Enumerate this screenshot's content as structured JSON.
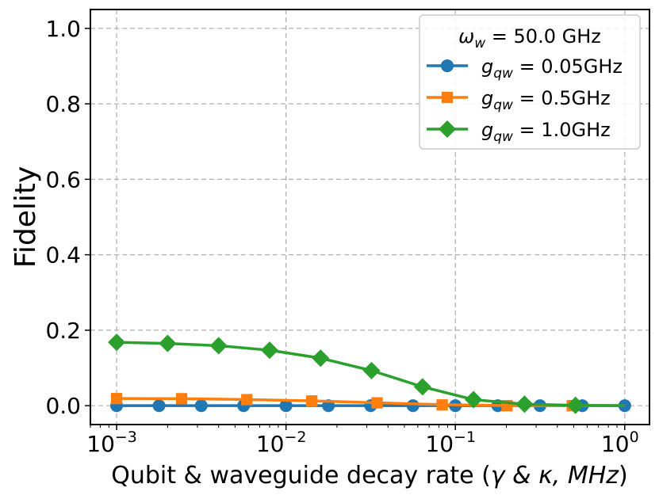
{
  "chart_data": {
    "type": "line",
    "xscale": "log",
    "xlim": [
      0.0007,
      1.4
    ],
    "ylim": [
      -0.05,
      1.05
    ],
    "xlabel": "Qubit & waveguide decay rate (γ & κ, MHz)",
    "ylabel": "Fidelity",
    "grid": true,
    "legend_position": "top-right",
    "legend_title": "ωw = 50.0 GHz",
    "x_ticks": [
      {
        "value": 0.001,
        "base": "10",
        "exp": "−3"
      },
      {
        "value": 0.01,
        "base": "10",
        "exp": "−2"
      },
      {
        "value": 0.1,
        "base": "10",
        "exp": "−1"
      },
      {
        "value": 1,
        "base": "10",
        "exp": "0"
      }
    ],
    "y_ticks": [
      {
        "value": 0.0,
        "label": "0.0"
      },
      {
        "value": 0.2,
        "label": "0.2"
      },
      {
        "value": 0.4,
        "label": "0.4"
      },
      {
        "value": 0.6,
        "label": "0.6"
      },
      {
        "value": 0.8,
        "label": "0.8"
      },
      {
        "value": 1.0,
        "label": "1.0"
      }
    ],
    "series": [
      {
        "name": "gqw = 0.05GHz",
        "legend_sym": "g",
        "legend_sub": "qw",
        "legend_rest": " = 0.05GHz",
        "color": "#1f77b4",
        "marker": "circle",
        "curve_x": [
          0.001,
          0.003,
          0.01,
          0.03,
          0.1,
          0.3,
          1.0
        ],
        "curve_y": [
          0.0,
          0.0,
          0.0,
          0.0,
          0.0,
          0.0,
          0.0
        ],
        "marker_x": [
          0.001,
          0.00178,
          0.00316,
          0.00562,
          0.01,
          0.0178,
          0.0316,
          0.0562,
          0.1,
          0.178,
          0.316,
          0.562,
          1.0
        ],
        "marker_y": [
          0.0,
          0.0,
          0.0,
          0.0,
          0.0,
          0.0,
          0.0,
          0.0,
          0.0,
          0.0,
          0.0,
          0.0,
          0.0
        ]
      },
      {
        "name": "gqw = 0.5GHz",
        "legend_sym": "g",
        "legend_sub": "qw",
        "legend_rest": " = 0.5GHz",
        "color": "#ff7f0e",
        "marker": "square",
        "curve_x": [
          0.001,
          0.0024,
          0.0057,
          0.0138,
          0.033,
          0.079,
          0.19,
          0.46,
          1.0
        ],
        "curve_y": [
          0.019,
          0.0185,
          0.0165,
          0.013,
          0.008,
          0.003,
          0.0005,
          0.0,
          0.0
        ],
        "marker_x": [
          0.001,
          0.00242,
          0.00587,
          0.0142,
          0.0345,
          0.0836,
          0.202,
          0.49
        ],
        "marker_y": [
          0.019,
          0.0185,
          0.016,
          0.0125,
          0.0075,
          0.002,
          0.0,
          0.0
        ]
      },
      {
        "name": "gqw = 1.0GHz",
        "legend_sym": "g",
        "legend_sub": "qw",
        "legend_rest": " = 1.0GHz",
        "color": "#2ca02c",
        "marker": "diamond",
        "curve_x": [
          0.001,
          0.002,
          0.004,
          0.008,
          0.016,
          0.032,
          0.064,
          0.128,
          0.256,
          0.512,
          1.0
        ],
        "curve_y": [
          0.168,
          0.165,
          0.159,
          0.147,
          0.126,
          0.093,
          0.05,
          0.016,
          0.004,
          0.001,
          0.0
        ],
        "marker_x": [
          0.001,
          0.002,
          0.004,
          0.008,
          0.016,
          0.032,
          0.064,
          0.128,
          0.256,
          0.512
        ],
        "marker_y": [
          0.168,
          0.165,
          0.159,
          0.147,
          0.126,
          0.093,
          0.05,
          0.016,
          0.004,
          0.001
        ]
      }
    ]
  }
}
